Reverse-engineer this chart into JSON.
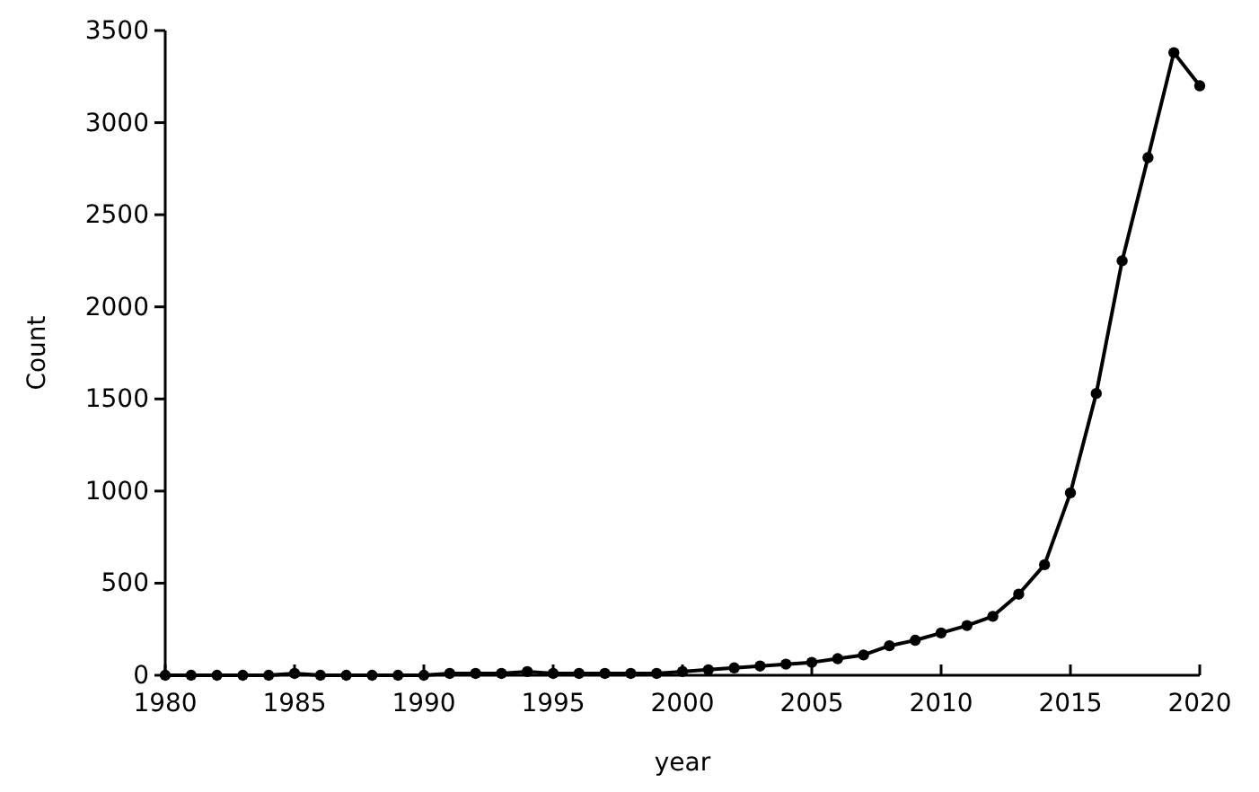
{
  "chart_data": {
    "type": "line",
    "xlabel": "year",
    "ylabel": "Count",
    "x": [
      1980,
      1981,
      1982,
      1983,
      1984,
      1985,
      1986,
      1987,
      1988,
      1989,
      1990,
      1991,
      1992,
      1993,
      1994,
      1995,
      1996,
      1997,
      1998,
      1999,
      2000,
      2001,
      2002,
      2003,
      2004,
      2005,
      2006,
      2007,
      2008,
      2009,
      2010,
      2011,
      2012,
      2013,
      2014,
      2015,
      2016,
      2017,
      2018,
      2019,
      2020
    ],
    "series": [
      {
        "color": "#000000",
        "values": [
          0,
          0,
          0,
          0,
          0,
          10,
          0,
          0,
          0,
          0,
          0,
          10,
          10,
          10,
          20,
          10,
          10,
          10,
          10,
          10,
          20,
          30,
          40,
          50,
          60,
          70,
          90,
          110,
          160,
          190,
          230,
          270,
          320,
          440,
          600,
          990,
          1530,
          2250,
          2810,
          3380,
          3200
        ]
      }
    ],
    "xlim": [
      1980,
      2020
    ],
    "xticks": [
      1980,
      1985,
      1990,
      1995,
      2000,
      2005,
      2010,
      2015,
      2020
    ],
    "ylim": [
      0,
      3500
    ],
    "yticks": [
      0,
      500,
      1000,
      1500,
      2000,
      2500,
      3000,
      3500
    ],
    "grid": false,
    "marker": "circle",
    "line_style": "solid"
  }
}
